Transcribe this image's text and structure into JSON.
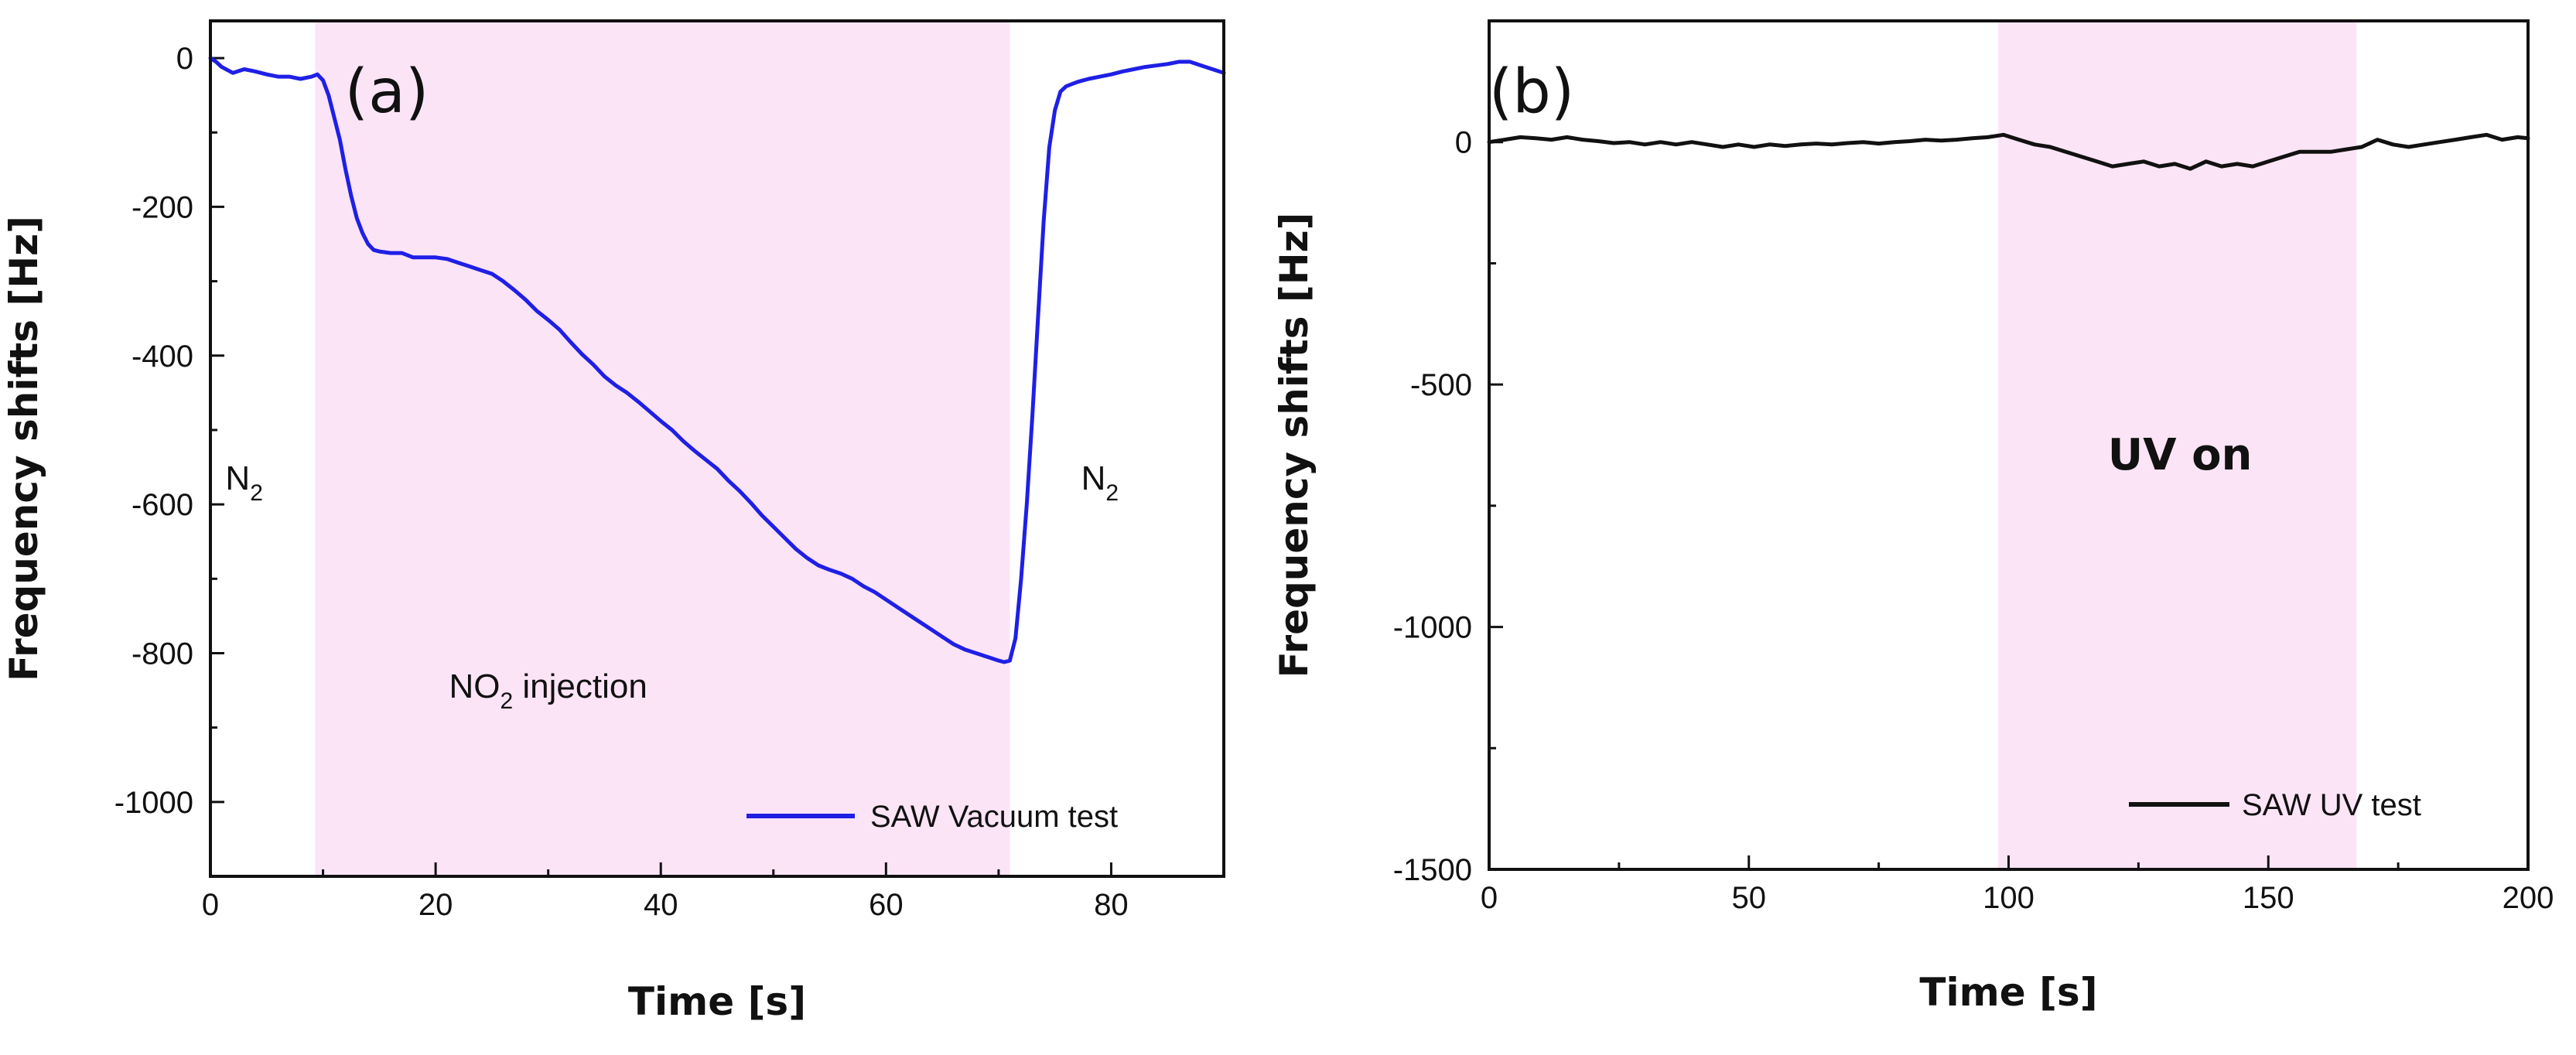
{
  "chart_data": [
    {
      "type": "line",
      "panel_label": "(a)",
      "xlabel": "Time [s]",
      "ylabel": "Frequency shifts [Hz]",
      "xlim": [
        0,
        90
      ],
      "ylim": [
        -1100,
        50
      ],
      "x_ticks": [
        0,
        20,
        40,
        60,
        80
      ],
      "y_ticks": [
        0,
        -200,
        -400,
        -600,
        -800,
        -1000
      ],
      "shaded_region": {
        "x_start": 9.3,
        "x_end": 71,
        "color": "#fce4f7"
      },
      "annotations": [
        {
          "text": "N",
          "sub": "2",
          "suffix": "",
          "x": 3,
          "y": -580,
          "style": "normal"
        },
        {
          "text": "NO",
          "sub": "2",
          "suffix": " injection",
          "x": 30,
          "y": -860,
          "style": "normal"
        },
        {
          "text": "N",
          "sub": "2",
          "suffix": "",
          "x": 79,
          "y": -580,
          "style": "normal"
        }
      ],
      "series": [
        {
          "name": "SAW Vacuum test",
          "color": "#1f1fe6",
          "x": [
            0,
            0.5,
            1,
            2,
            3,
            4,
            5,
            6,
            7,
            8,
            9,
            9.5,
            10,
            10.5,
            11,
            11.5,
            12,
            12.5,
            13,
            13.5,
            14,
            14.5,
            15,
            16,
            17,
            18,
            19,
            20,
            21,
            22,
            23,
            24,
            25,
            26,
            27,
            28,
            29,
            30,
            31,
            32,
            33,
            34,
            35,
            36,
            37,
            38,
            39,
            40,
            41,
            42,
            43,
            44,
            45,
            46,
            47,
            48,
            49,
            50,
            51,
            52,
            53,
            54,
            55,
            56,
            57,
            58,
            59,
            60,
            61,
            62,
            63,
            64,
            65,
            66,
            67,
            68,
            69,
            70,
            70.5,
            71,
            71.5,
            72,
            72.5,
            73,
            73.5,
            74,
            74.5,
            75,
            75.5,
            76,
            77,
            78,
            79,
            80,
            81,
            82,
            83,
            84,
            85,
            86,
            87,
            88,
            89,
            90
          ],
          "values": [
            0,
            -5,
            -12,
            -20,
            -15,
            -18,
            -22,
            -25,
            -25,
            -28,
            -25,
            -22,
            -30,
            -50,
            -80,
            -110,
            -150,
            -185,
            -215,
            -235,
            -250,
            -258,
            -260,
            -262,
            -262,
            -268,
            -268,
            -268,
            -270,
            -275,
            -280,
            -285,
            -290,
            -300,
            -312,
            -325,
            -340,
            -352,
            -365,
            -382,
            -398,
            -412,
            -428,
            -440,
            -450,
            -462,
            -475,
            -488,
            -500,
            -515,
            -528,
            -540,
            -552,
            -568,
            -582,
            -598,
            -615,
            -630,
            -645,
            -660,
            -672,
            -682,
            -688,
            -693,
            -700,
            -710,
            -718,
            -728,
            -738,
            -748,
            -758,
            -768,
            -778,
            -788,
            -795,
            -800,
            -805,
            -810,
            -812,
            -810,
            -780,
            -700,
            -600,
            -480,
            -350,
            -220,
            -120,
            -70,
            -45,
            -38,
            -32,
            -28,
            -25,
            -22,
            -18,
            -15,
            -12,
            -10,
            -8,
            -5,
            -5,
            -10,
            -15,
            -20
          ]
        }
      ],
      "legend_position": "bottom-right"
    },
    {
      "type": "line",
      "panel_label": "(b)",
      "xlabel": "Time [s]",
      "ylabel": "Frequency shifts [Hz]",
      "xlim": [
        0,
        200
      ],
      "ylim": [
        -1500,
        250
      ],
      "x_ticks": [
        0,
        50,
        100,
        150,
        200
      ],
      "y_ticks": [
        0,
        -500,
        -1000,
        -1500
      ],
      "shaded_region": {
        "x_start": 98,
        "x_end": 167,
        "color": "#fce4f7"
      },
      "annotations": [
        {
          "text": "UV on",
          "sub": "",
          "suffix": "",
          "x": 133,
          "y": -675,
          "style": "bold"
        }
      ],
      "series": [
        {
          "name": "SAW UV test",
          "color": "#111111",
          "x": [
            0,
            3,
            6,
            9,
            12,
            15,
            18,
            21,
            24,
            27,
            30,
            33,
            36,
            39,
            42,
            45,
            48,
            51,
            54,
            57,
            60,
            63,
            66,
            69,
            72,
            75,
            78,
            81,
            84,
            87,
            90,
            93,
            96,
            99,
            102,
            105,
            108,
            111,
            114,
            117,
            120,
            123,
            126,
            129,
            132,
            135,
            138,
            141,
            144,
            147,
            150,
            153,
            156,
            159,
            162,
            165,
            168,
            171,
            174,
            177,
            180,
            183,
            186,
            189,
            192,
            195,
            198,
            200
          ],
          "values": [
            0,
            5,
            10,
            8,
            5,
            10,
            5,
            2,
            -2,
            0,
            -5,
            0,
            -5,
            0,
            -5,
            -10,
            -5,
            -10,
            -5,
            -8,
            -5,
            -3,
            -5,
            -2,
            0,
            -3,
            0,
            2,
            5,
            3,
            5,
            8,
            10,
            15,
            5,
            -5,
            -10,
            -20,
            -30,
            -40,
            -50,
            -45,
            -40,
            -50,
            -45,
            -55,
            -40,
            -50,
            -45,
            -50,
            -40,
            -30,
            -20,
            -20,
            -20,
            -15,
            -10,
            5,
            -5,
            -10,
            -5,
            0,
            5,
            10,
            15,
            5,
            10,
            8
          ]
        }
      ],
      "legend_position": "bottom-right"
    }
  ]
}
